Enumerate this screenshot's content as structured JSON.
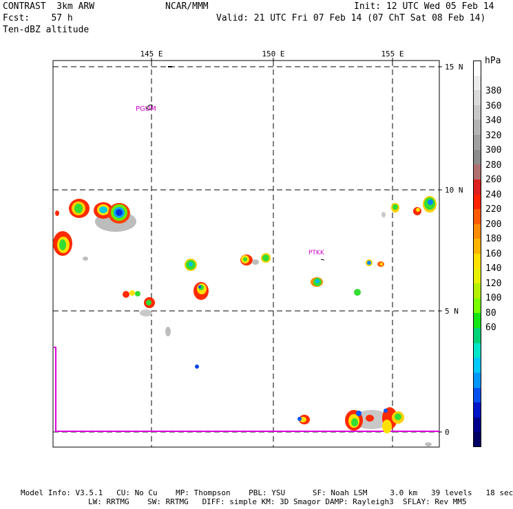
{
  "header": {
    "line1_left": "CONTRAST  3km ARW",
    "line1_mid": "NCAR/MMM",
    "line1_right": "Init: 12 UTC Wed 05 Feb 14",
    "line2_left": "Fcst:    57 h",
    "line2_right": "Valid: 21 UTC Fri 07 Feb 14 (07 ChT Sat 08 Feb 14)",
    "line3_left": "Ten-dBZ altitude"
  },
  "map": {
    "lon_labels": [
      "145 E",
      "150 E",
      "155 E"
    ],
    "lat_labels": [
      "15 N",
      "10 N",
      "5 N",
      "0"
    ],
    "stations": [
      {
        "id": "PGUM"
      },
      {
        "id": "PTKK"
      }
    ],
    "colors": {
      "coastline": "#000000",
      "flight_track": "#dd00dd",
      "gridline": "#000000"
    }
  },
  "colorbar": {
    "unit": "hPa",
    "labels": [
      "380",
      "360",
      "340",
      "320",
      "300",
      "280",
      "260",
      "240",
      "220",
      "200",
      "180",
      "160",
      "140",
      "120",
      "100",
      "80",
      "60"
    ],
    "colors": [
      "#ffffff",
      "#ececec",
      "#dadada",
      "#c8c8c8",
      "#b4b4b4",
      "#a0a0a0",
      "#8c8c8c",
      "#b07070",
      "#dd2020",
      "#ff2200",
      "#ff5a00",
      "#ff8c00",
      "#ffb400",
      "#ffe000",
      "#e6f000",
      "#b4f000",
      "#78ff00",
      "#14e614",
      "#00d278",
      "#00e6c8",
      "#00c8ff",
      "#0096ff",
      "#0050f0",
      "#0014c8",
      "#00008c",
      "#000064"
    ]
  },
  "footer": {
    "line1": "Model Info: V3.5.1   CU: No Cu    MP: Thompson    PBL: YSU      SF: Noah LSM     3.0 km   39 levels   18 sec",
    "line2": "LW: RRTMG    SW: RRTMG   DIFF: simple KM: 3D Smagor DAMP: Rayleigh3  SFLAY: Rev MM5"
  }
}
